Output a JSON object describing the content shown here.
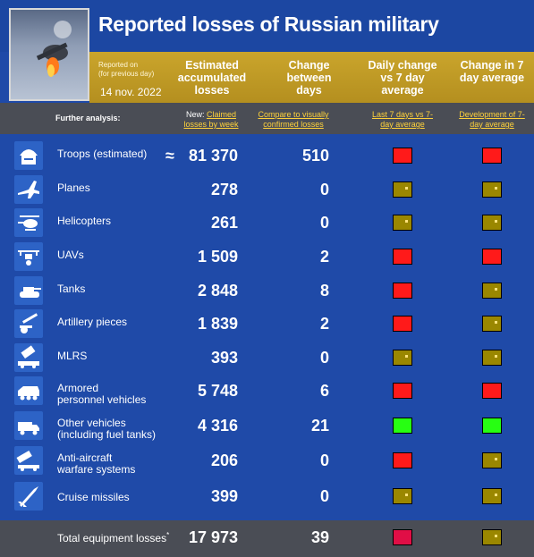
{
  "title": "Reported losses of Russian military",
  "reported_on": "Reported on",
  "reported_note": "(for previous day)",
  "date": "14 nov. 2022",
  "headers": {
    "estimated": "Estimated accumulated losses",
    "change": "Change between days",
    "daily": "Daily change vs 7 day average",
    "change7": "Change in 7 day average"
  },
  "further_analysis": "Further analysis:",
  "links": {
    "new_prefix": "New:",
    "claimed": "Claimed losses by week",
    "compare": "Compare to visually confirmed losses",
    "last7": "Last 7 days vs 7-day average",
    "development": "Development of 7-day average"
  },
  "approx_symbol": "≈",
  "colors": {
    "red": "#ff1a1a",
    "olive": "#9a8700",
    "green": "#27ff12",
    "crimson": "#e00e46"
  },
  "rows": [
    {
      "label": "Troops (estimated)",
      "value": "81 370",
      "change": "510",
      "daily": "red",
      "change7": "red",
      "icon": "soldier-helmet-icon"
    },
    {
      "label": "Planes",
      "value": "278",
      "change": "0",
      "daily": "olive",
      "change7": "olive",
      "icon": "plane-icon"
    },
    {
      "label": "Helicopters",
      "value": "261",
      "change": "0",
      "daily": "olive",
      "change7": "olive",
      "icon": "helicopter-icon"
    },
    {
      "label": "UAVs",
      "value": "1 509",
      "change": "2",
      "daily": "red",
      "change7": "red",
      "icon": "drone-icon"
    },
    {
      "label": "Tanks",
      "value": "2 848",
      "change": "8",
      "daily": "red",
      "change7": "olive",
      "icon": "tank-icon"
    },
    {
      "label": "Artillery pieces",
      "value": "1 839",
      "change": "2",
      "daily": "red",
      "change7": "olive",
      "icon": "artillery-icon"
    },
    {
      "label": "MLRS",
      "value": "393",
      "change": "0",
      "daily": "olive",
      "change7": "olive",
      "icon": "mlrs-icon"
    },
    {
      "label": "Armored",
      "label2": "personnel vehicles",
      "value": "5 748",
      "change": "6",
      "daily": "red",
      "change7": "red",
      "icon": "apc-icon"
    },
    {
      "label": "Other vehicles",
      "label2": "(including fuel tanks)",
      "value": "4 316",
      "change": "21",
      "daily": "green",
      "change7": "green",
      "icon": "truck-icon"
    },
    {
      "label": "Anti-aircraft",
      "label2": "warfare systems",
      "value": "206",
      "change": "0",
      "daily": "red",
      "change7": "olive",
      "icon": "anti-aircraft-icon"
    },
    {
      "label": "Cruise missiles",
      "value": "399",
      "change": "0",
      "daily": "olive",
      "change7": "olive",
      "icon": "missile-icon"
    }
  ],
  "total": {
    "label": "Total equipment losses",
    "asterisk": "*",
    "value": "17 973",
    "change": "39",
    "daily": "crimson",
    "change7": "olive"
  }
}
